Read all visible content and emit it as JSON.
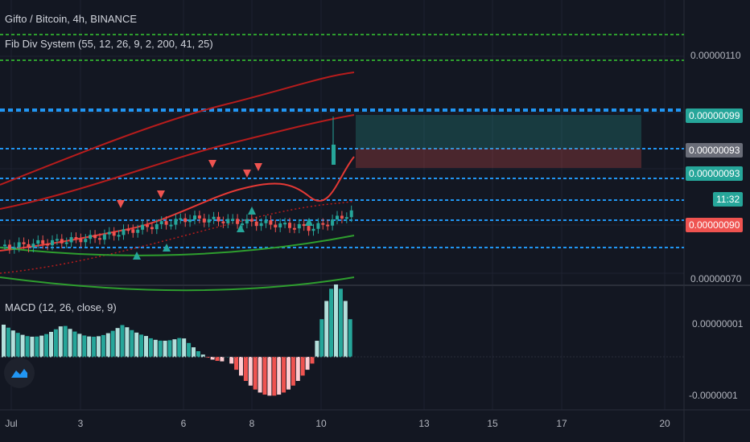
{
  "header": {
    "symbol_line": "Gifto / Bitcoin, 4h, BINANCE",
    "indicator_line": "Fib Div System (55, 12, 26, 9, 2, 200, 41, 25)"
  },
  "macd": {
    "label": "MACD (12, 26, close, 9)"
  },
  "price_axis": {
    "labels": [
      "0.00000110",
      "0.00000070"
    ]
  },
  "price_badges": {
    "top": {
      "text": "0.00000099",
      "bg": "#26a69a",
      "fg": "#ffffff"
    },
    "current": {
      "text": "0.00000093",
      "bg": "#6a6d78",
      "fg": "#ffffff"
    },
    "level": {
      "text": "0.00000093",
      "bg": "#26a69a",
      "fg": "#ffffff"
    },
    "countdown": {
      "text": "11:32",
      "bg": "#26a69a",
      "fg": "#ffffff"
    },
    "low": {
      "text": "0.00000090",
      "bg": "#ef5350",
      "fg": "#ffffff"
    }
  },
  "macd_axis": {
    "labels": [
      "0.00000001",
      "-0.0000001"
    ]
  },
  "time_axis": {
    "labels": [
      "Jul",
      "3",
      "6",
      "8",
      "10",
      "13",
      "15",
      "17",
      "20"
    ]
  },
  "colors": {
    "background": "#131722",
    "up": "#26a69a",
    "down": "#ef5350",
    "macd_up_light": "#b2dfdb",
    "macd_down_light": "#ffcdd2",
    "fib_blue": "#2196f3",
    "fib_green": "#2e9e2e",
    "band_red": "#b71c1c"
  },
  "logo": {
    "icon": "tradingview-logo-icon"
  }
}
